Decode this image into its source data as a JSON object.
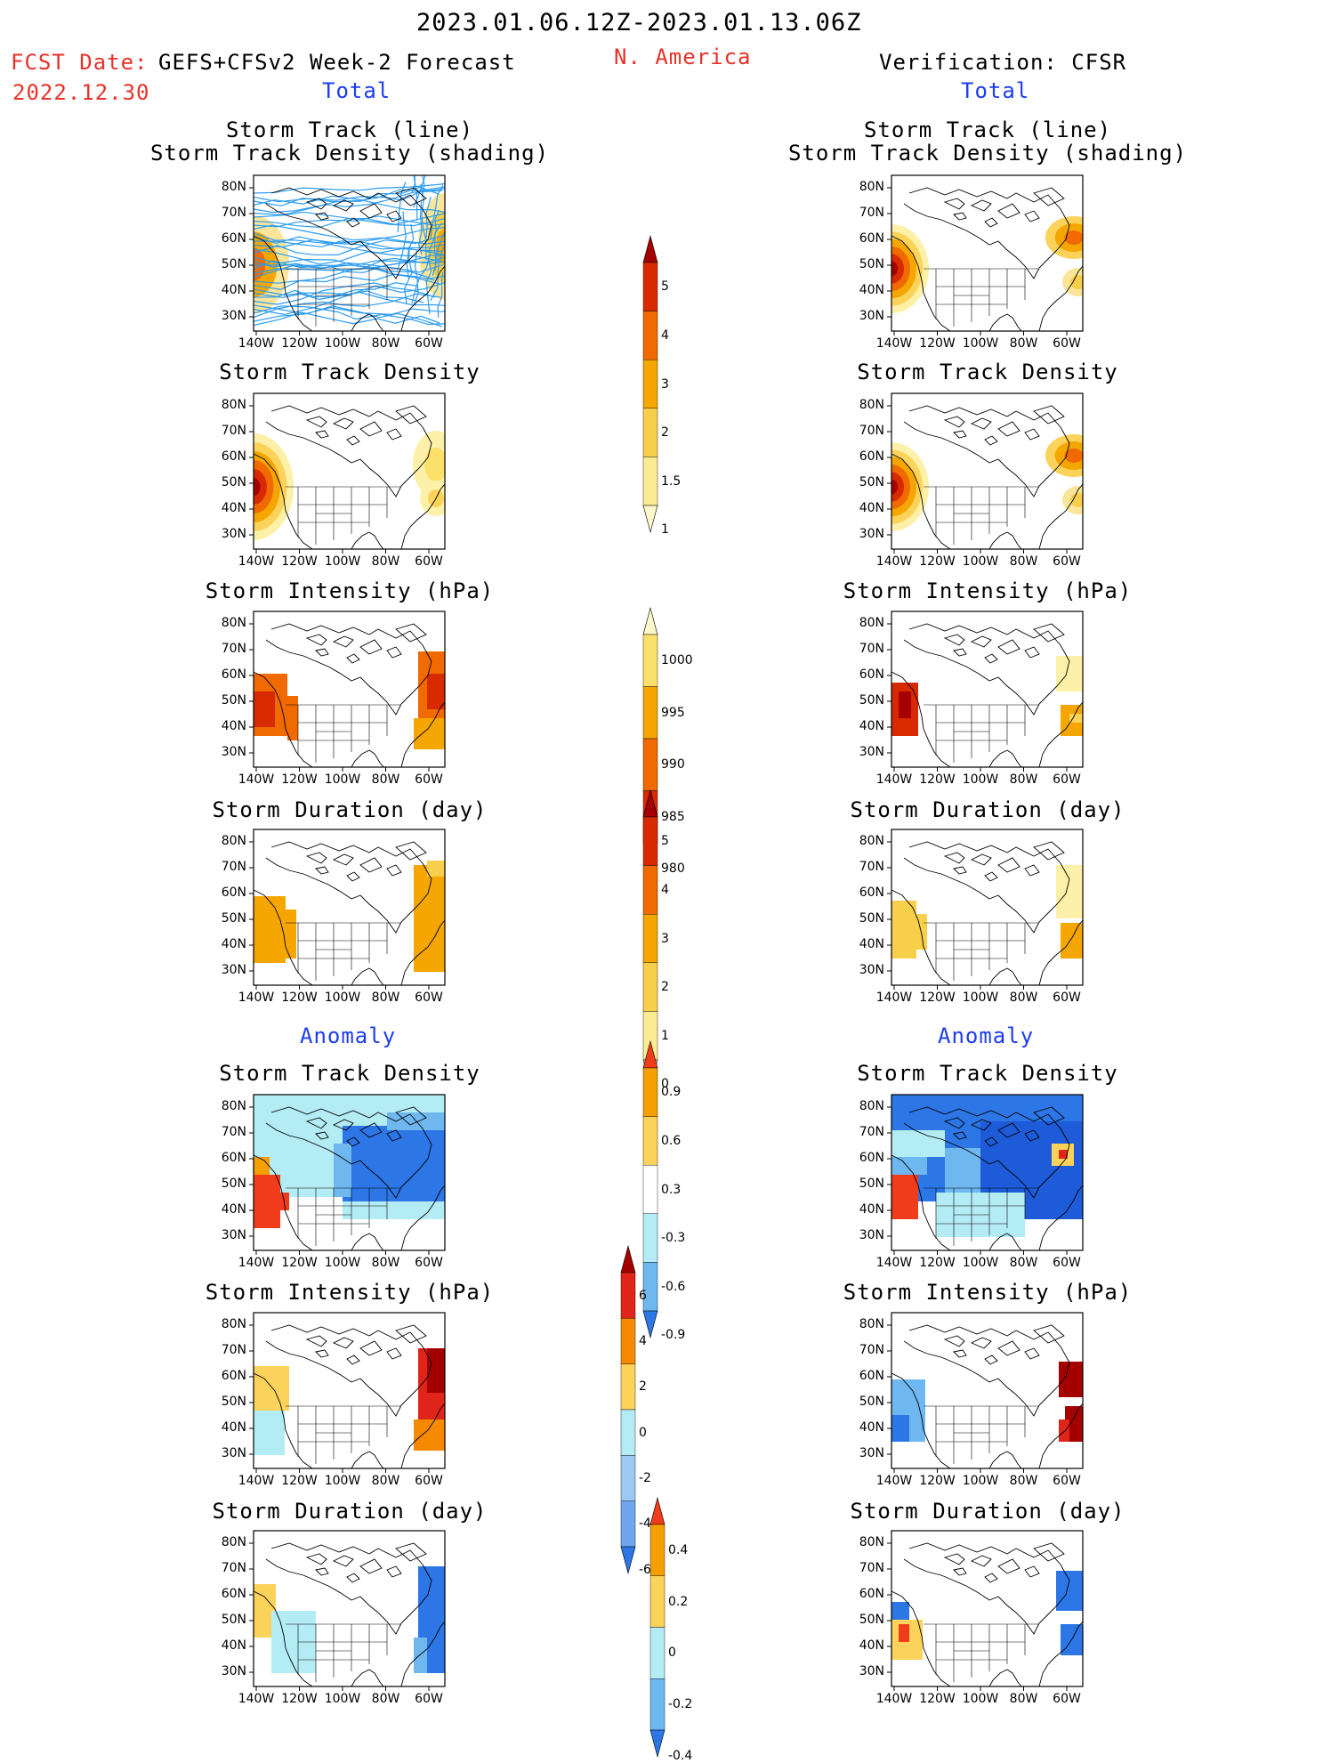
{
  "header": {
    "period": "2023.01.06.12Z-2023.01.13.06Z",
    "fcst_label": "FCST Date:",
    "fcst_model": "GEFS+CFSv2 Week-2 Forecast",
    "fcst_date": "2022.12.30",
    "region": "N. America",
    "verification": "Verification: CFSR"
  },
  "sections": {
    "total": "Total",
    "anomaly": "Anomaly"
  },
  "panel_titles": {
    "track_line": "Storm Track (line)",
    "track_shading": "Storm Track Density (shading)",
    "density": "Storm Track Density",
    "intensity": "Storm Intensity (hPa)",
    "duration": "Storm Duration (day)"
  },
  "axes": {
    "lat_labels": [
      "80N",
      "70N",
      "60N",
      "50N",
      "40N",
      "30N"
    ],
    "lon_labels": [
      "140W",
      "120W",
      "100W",
      "80W",
      "60W"
    ]
  },
  "colorbars": [
    {
      "id": "density_total",
      "labels": [
        "5",
        "4",
        "3",
        "2",
        "1.5",
        "1"
      ],
      "colors": [
        "#a50000",
        "#d72a00",
        "#f06a00",
        "#f5a600",
        "#f8cf4a",
        "#fbeb92",
        "#fdf8c8"
      ],
      "extend": "both"
    },
    {
      "id": "intensity_total",
      "labels": [
        "1000",
        "995",
        "990",
        "985",
        "980"
      ],
      "colors": [
        "#fdf8c8",
        "#fbe06a",
        "#f5a600",
        "#f06a00",
        "#d72a00",
        "#a50000"
      ],
      "extend": "both"
    },
    {
      "id": "duration_total",
      "labels": [
        "5",
        "4",
        "3",
        "2",
        "1",
        "0"
      ],
      "colors": [
        "#a50000",
        "#d72a00",
        "#f06a00",
        "#f5a600",
        "#f8cf4a",
        "#fbeb92",
        "#fdf8c8"
      ],
      "extend": "both"
    },
    {
      "id": "density_anom",
      "labels": [
        "0.9",
        "0.6",
        "0.3",
        "-0.3",
        "-0.6",
        "-0.9"
      ],
      "colors": [
        "#f03c1a",
        "#f5a000",
        "#fbd35a",
        "#ffffff",
        "#b4ecf5",
        "#6fb8ef",
        "#2c76e6"
      ],
      "extend": "both"
    },
    {
      "id": "intensity_anom",
      "labels": [
        "6",
        "4",
        "2",
        "0",
        "-2",
        "-4",
        "-6"
      ],
      "colors": [
        "#a50000",
        "#e0241a",
        "#f58a00",
        "#fbd35a",
        "#b4ecf5",
        "#9ccaf3",
        "#6fa6ef",
        "#2c76e6"
      ],
      "extend": "both"
    },
    {
      "id": "duration_anom",
      "labels": [
        "0.4",
        "0.2",
        "0",
        "-0.2",
        "-0.4"
      ],
      "colors": [
        "#f03c1a",
        "#f5a000",
        "#fbd35a",
        "#b4ecf5",
        "#6fb8ef",
        "#2c76e6"
      ],
      "extend": "both"
    }
  ],
  "colors": {
    "red_text": "#e8322a",
    "blue_text": "#1d3cf0",
    "track_line": "#2c9cf0"
  }
}
